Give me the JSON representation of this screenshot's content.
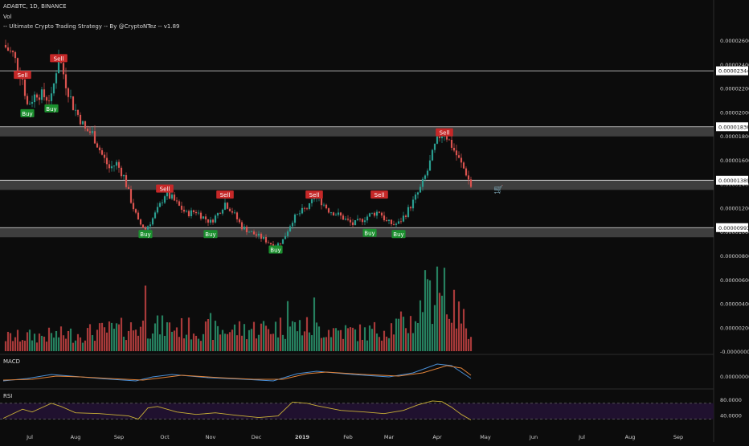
{
  "header": {
    "symbol_line": "ADABTC, 1D, BINANCE",
    "volume_label": "Vol",
    "strategy_label": "-- Ultimate Crypto Trading Strategy -- By @CryptoNTez -- v1.89"
  },
  "price_axis": {
    "ticks": [
      "0.00002600",
      "0.00002400",
      "0.00002200",
      "0.00002000",
      "0.00001800",
      "0.00001600",
      "0.00001400",
      "0.00001200",
      "0.00001000",
      "0.00000800",
      "0.00000600",
      "0.00000400",
      "0.00000200",
      "-0.00000000"
    ],
    "tick_values": [
      2.6e-05,
      2.4e-05,
      2.2e-05,
      2e-05,
      1.8e-05,
      1.6e-05,
      1.4e-05,
      1.2e-05,
      1e-05,
      8e-06
    ],
    "volume_tick_values": [
      6e-06,
      4e-06,
      2e-06,
      0
    ]
  },
  "levels": [
    {
      "label": "0.00002344",
      "value": 2.344e-05,
      "kind": "line"
    },
    {
      "label": "0.00001836",
      "value": 1.836e-05,
      "kind": "band"
    },
    {
      "label": "0.00001389",
      "value": 1.389e-05,
      "kind": "band"
    },
    {
      "label": "0.00000993",
      "value": 9.93e-06,
      "kind": "band"
    }
  ],
  "signals": [
    {
      "text": "Sell",
      "type": "sell",
      "day": 8,
      "price": 2.31e-05
    },
    {
      "text": "Buy",
      "type": "buy",
      "day": 10,
      "price": 1.99e-05
    },
    {
      "text": "Buy",
      "type": "buy",
      "day": 20,
      "price": 2.03e-05
    },
    {
      "text": "Sell",
      "type": "sell",
      "day": 23,
      "price": 2.45e-05
    },
    {
      "text": "Sell",
      "type": "sell",
      "day": 67,
      "price": 1.36e-05
    },
    {
      "text": "Buy",
      "type": "buy",
      "day": 59,
      "price": 9.8e-06
    },
    {
      "text": "Sell",
      "type": "sell",
      "day": 92,
      "price": 1.31e-05
    },
    {
      "text": "Buy",
      "type": "buy",
      "day": 86,
      "price": 9.8e-06
    },
    {
      "text": "Buy",
      "type": "buy",
      "day": 113,
      "price": 8.5e-06
    },
    {
      "text": "Sell",
      "type": "sell",
      "day": 129,
      "price": 1.31e-05
    },
    {
      "text": "Sell",
      "type": "sell",
      "day": 156,
      "price": 1.31e-05
    },
    {
      "text": "Buy",
      "type": "buy",
      "day": 152,
      "price": 9.9e-06
    },
    {
      "text": "Buy",
      "type": "buy",
      "day": 164,
      "price": 9.8e-06
    },
    {
      "text": "Sell",
      "type": "sell",
      "day": 183,
      "price": 1.83e-05
    }
  ],
  "time_axis": {
    "labels": [
      "Jul",
      "Aug",
      "Sep",
      "Oct",
      "Nov",
      "Dec",
      "2019",
      "Feb",
      "Mar",
      "Apr",
      "May",
      "Jun",
      "Jul",
      "Aug",
      "Sep"
    ],
    "days": [
      11,
      30,
      48,
      67,
      86,
      105,
      124,
      143,
      160,
      180,
      200,
      220,
      240,
      260,
      280
    ]
  },
  "macd": {
    "label": "MACD",
    "ticks": [
      "0.00000000"
    ],
    "tick_values": [
      0
    ]
  },
  "rsi": {
    "label": "RSI",
    "ticks": [
      "80.0000",
      "40.0000"
    ],
    "tick_values": [
      80,
      40
    ],
    "bands": [
      70,
      30
    ]
  },
  "colors": {
    "background": "#0c0c0c",
    "bull": "#2a9d8f",
    "bear": "#d9534f",
    "sell_signal": "#c62828",
    "buy_signal": "#1b8f2e",
    "volume_bull": "#26805f",
    "volume_bear": "#a83a3a",
    "rsi_line": "#c9b036",
    "rsi_band": "#20112f",
    "macd_line": "#4a8fd6",
    "signal_line": "#e0833a",
    "level_band": "#9e9e9e"
  },
  "cart_icon": "shopping-cart-icon",
  "chart_data": {
    "type": "candlestick",
    "title": "ADABTC, 1D, BINANCE",
    "timeframe": "1D",
    "exchange": "BINANCE",
    "xlabel": "",
    "ylabel": "",
    "start": "2018-06-20",
    "close_path": [
      [
        0,
        2.56e-05
      ],
      [
        4,
        2.48e-05
      ],
      [
        8,
        2.28e-05
      ],
      [
        10,
        2.06e-05
      ],
      [
        14,
        2.16e-05
      ],
      [
        18,
        2.12e-05
      ],
      [
        20,
        2.11e-05
      ],
      [
        23,
        2.48e-05
      ],
      [
        26,
        2.24e-05
      ],
      [
        29,
        2.05e-05
      ],
      [
        32,
        1.94e-05
      ],
      [
        34,
        1.85e-05
      ],
      [
        37,
        1.82e-05
      ],
      [
        41,
        1.64e-05
      ],
      [
        44,
        1.53e-05
      ],
      [
        47,
        1.57e-05
      ],
      [
        50,
        1.46e-05
      ],
      [
        53,
        1.26e-05
      ],
      [
        56,
        1.08e-05
      ],
      [
        59,
        1.02e-05
      ],
      [
        62,
        1.11e-05
      ],
      [
        65,
        1.22e-05
      ],
      [
        67,
        1.31e-05
      ],
      [
        70,
        1.28e-05
      ],
      [
        73,
        1.21e-05
      ],
      [
        76,
        1.15e-05
      ],
      [
        80,
        1.17e-05
      ],
      [
        83,
        1.12e-05
      ],
      [
        86,
        1.08e-05
      ],
      [
        89,
        1.15e-05
      ],
      [
        92,
        1.24e-05
      ],
      [
        95,
        1.17e-05
      ],
      [
        99,
        1.04e-05
      ],
      [
        103,
        9.9e-06
      ],
      [
        107,
        9.5e-06
      ],
      [
        111,
        9e-06
      ],
      [
        113,
        8.8e-06
      ],
      [
        116,
        9.3e-06
      ],
      [
        120,
        1.1e-05
      ],
      [
        124,
        1.17e-05
      ],
      [
        127,
        1.21e-05
      ],
      [
        129,
        1.29e-05
      ],
      [
        132,
        1.25e-05
      ],
      [
        135,
        1.18e-05
      ],
      [
        139,
        1.14e-05
      ],
      [
        142,
        1.1e-05
      ],
      [
        145,
        1.06e-05
      ],
      [
        148,
        1.09e-05
      ],
      [
        152,
        1.14e-05
      ],
      [
        156,
        1.17e-05
      ],
      [
        159,
        1.08e-05
      ],
      [
        162,
        1.06e-05
      ],
      [
        164,
        1.07e-05
      ],
      [
        167,
        1.15e-05
      ],
      [
        170,
        1.25e-05
      ],
      [
        173,
        1.36e-05
      ],
      [
        176,
        1.51e-05
      ],
      [
        179,
        1.71e-05
      ],
      [
        181,
        1.8e-05
      ],
      [
        183,
        1.83e-05
      ],
      [
        186,
        1.72e-05
      ],
      [
        189,
        1.6e-05
      ],
      [
        192,
        1.49e-05
      ],
      [
        194,
        1.38e-05
      ]
    ],
    "volume_profile": [
      [
        0,
        1.2e-06
      ],
      [
        30,
        1.5e-06
      ],
      [
        60,
        2.2e-06
      ],
      [
        90,
        1.8e-06
      ],
      [
        120,
        2.2e-06
      ],
      [
        150,
        1.6e-06
      ],
      [
        170,
        2.6e-06
      ],
      [
        180,
        5.5e-06
      ],
      [
        186,
        3.8e-06
      ],
      [
        194,
        2e-06
      ]
    ],
    "volume_spikes": [
      [
        59,
        5.5e-06
      ],
      [
        86,
        3.2e-06
      ],
      [
        118,
        4.2e-06
      ],
      [
        129,
        4.5e-06
      ],
      [
        175,
        6.8e-06
      ],
      [
        180,
        7.1e-06
      ],
      [
        183,
        7e-06
      ]
    ],
    "rsi_path": [
      [
        0,
        32
      ],
      [
        8,
        55
      ],
      [
        12,
        48
      ],
      [
        20,
        70
      ],
      [
        24,
        62
      ],
      [
        30,
        46
      ],
      [
        40,
        44
      ],
      [
        52,
        38
      ],
      [
        56,
        30
      ],
      [
        60,
        58
      ],
      [
        64,
        62
      ],
      [
        72,
        48
      ],
      [
        80,
        42
      ],
      [
        88,
        46
      ],
      [
        96,
        40
      ],
      [
        106,
        34
      ],
      [
        114,
        38
      ],
      [
        120,
        73
      ],
      [
        126,
        70
      ],
      [
        130,
        64
      ],
      [
        140,
        52
      ],
      [
        150,
        48
      ],
      [
        158,
        44
      ],
      [
        166,
        52
      ],
      [
        172,
        66
      ],
      [
        178,
        76
      ],
      [
        182,
        74
      ],
      [
        186,
        60
      ],
      [
        190,
        42
      ],
      [
        194,
        28
      ]
    ],
    "macd_path": [
      [
        0,
        -0.6
      ],
      [
        10,
        -0.3
      ],
      [
        20,
        0.2
      ],
      [
        28,
        0.0
      ],
      [
        40,
        -0.3
      ],
      [
        55,
        -0.6
      ],
      [
        62,
        -0.1
      ],
      [
        70,
        0.2
      ],
      [
        85,
        -0.2
      ],
      [
        100,
        -0.4
      ],
      [
        112,
        -0.6
      ],
      [
        122,
        0.3
      ],
      [
        130,
        0.6
      ],
      [
        145,
        0.2
      ],
      [
        160,
        -0.1
      ],
      [
        170,
        0.4
      ],
      [
        180,
        1.5
      ],
      [
        186,
        1.3
      ],
      [
        194,
        -0.3
      ]
    ],
    "signal_path": [
      [
        0,
        -0.5
      ],
      [
        12,
        -0.4
      ],
      [
        22,
        0.0
      ],
      [
        32,
        -0.1
      ],
      [
        44,
        -0.3
      ],
      [
        58,
        -0.5
      ],
      [
        66,
        -0.2
      ],
      [
        74,
        0.1
      ],
      [
        90,
        -0.2
      ],
      [
        104,
        -0.4
      ],
      [
        116,
        -0.4
      ],
      [
        126,
        0.3
      ],
      [
        134,
        0.5
      ],
      [
        150,
        0.2
      ],
      [
        164,
        0.0
      ],
      [
        174,
        0.4
      ],
      [
        184,
        1.3
      ],
      [
        190,
        1.0
      ],
      [
        194,
        0.1
      ]
    ]
  }
}
